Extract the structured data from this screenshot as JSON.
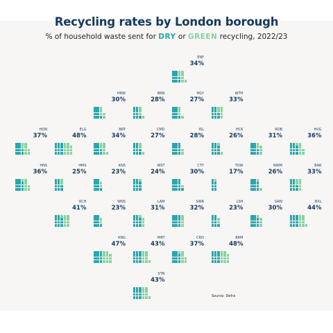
{
  "title": "Recycling rates by London borough",
  "subtitle": {
    "prefix": "% of household waste sent for ",
    "dry": "DRY",
    "middle": " or ",
    "green": "GREEN",
    "suffix": " recycling, 2022/23"
  },
  "source": "Source: Defra",
  "colors": {
    "dry": "#2ba6ad",
    "green": "#86d39f",
    "title": "#163a5f",
    "background": "#f7f6f4"
  },
  "chart_data": {
    "type": "waffle",
    "unit": "% of household waste",
    "series": [
      "DRY",
      "GREEN"
    ],
    "boroughs": [
      {
        "code": "ENF",
        "total": 34,
        "dry": 20,
        "green": 14
      },
      {
        "code": "HRW",
        "total": 30,
        "dry": 19,
        "green": 11
      },
      {
        "code": "BRN",
        "total": 28,
        "dry": 19,
        "green": 9
      },
      {
        "code": "HGY",
        "total": 27,
        "dry": 19,
        "green": 8
      },
      {
        "code": "WTH",
        "total": 33,
        "dry": 20,
        "green": 13
      },
      {
        "code": "HDN",
        "total": 37,
        "dry": 21,
        "green": 16
      },
      {
        "code": "ELG",
        "total": 48,
        "dry": 25,
        "green": 23
      },
      {
        "code": "BRT",
        "total": 34,
        "dry": 20,
        "green": 14
      },
      {
        "code": "CMD",
        "total": 27,
        "dry": 21,
        "green": 6
      },
      {
        "code": "ISL",
        "total": 28,
        "dry": 24,
        "green": 4
      },
      {
        "code": "HCK",
        "total": 26,
        "dry": 22,
        "green": 4
      },
      {
        "code": "RDB",
        "total": 31,
        "dry": 20,
        "green": 11
      },
      {
        "code": "HVG",
        "total": 36,
        "dry": 22,
        "green": 14
      },
      {
        "code": "HNS",
        "total": 36,
        "dry": 22,
        "green": 14
      },
      {
        "code": "HMS",
        "total": 25,
        "dry": 20,
        "green": 5
      },
      {
        "code": "KNS",
        "total": 23,
        "dry": 18,
        "green": 5
      },
      {
        "code": "WST",
        "total": 24,
        "dry": 22,
        "green": 2
      },
      {
        "code": "CTY",
        "total": 30,
        "dry": 27,
        "green": 3
      },
      {
        "code": "TOW",
        "total": 17,
        "dry": 15,
        "green": 2
      },
      {
        "code": "NWM",
        "total": 26,
        "dry": 22,
        "green": 4
      },
      {
        "code": "BAR",
        "total": 33,
        "dry": 21,
        "green": 12
      },
      {
        "code": "RCH",
        "total": 41,
        "dry": 23,
        "green": 18
      },
      {
        "code": "WNS",
        "total": 23,
        "dry": 18,
        "green": 5
      },
      {
        "code": "LAM",
        "total": 31,
        "dry": 22,
        "green": 9
      },
      {
        "code": "SWR",
        "total": 32,
        "dry": 24,
        "green": 8
      },
      {
        "code": "LSH",
        "total": 23,
        "dry": 18,
        "green": 5
      },
      {
        "code": "GRN",
        "total": 30,
        "dry": 22,
        "green": 8
      },
      {
        "code": "BXL",
        "total": 44,
        "dry": 26,
        "green": 18
      },
      {
        "code": "KNG",
        "total": 47,
        "dry": 25,
        "green": 22
      },
      {
        "code": "MRT",
        "total": 43,
        "dry": 25,
        "green": 18
      },
      {
        "code": "CRD",
        "total": 37,
        "dry": 22,
        "green": 15
      },
      {
        "code": "BRM",
        "total": 48,
        "dry": 25,
        "green": 23
      },
      {
        "code": "STN",
        "total": 43,
        "dry": 24,
        "green": 19
      }
    ]
  }
}
